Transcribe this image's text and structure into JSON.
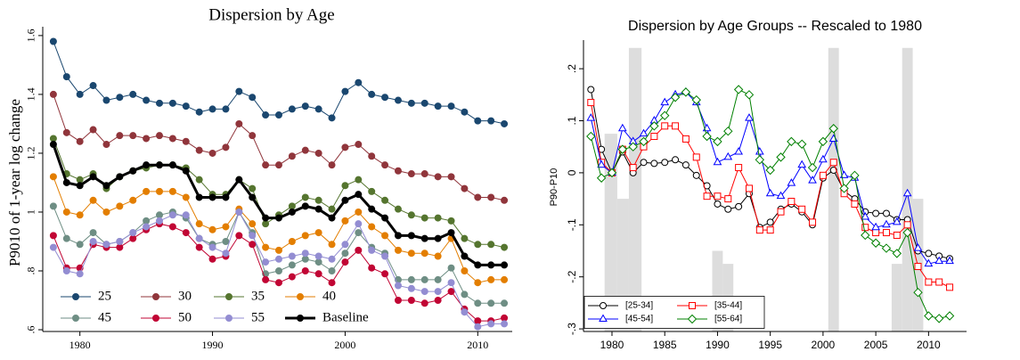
{
  "chart_data": [
    {
      "type": "line",
      "title": "Dispersion by Age",
      "y_label": "P9010 of 1-year log change",
      "x": [
        1978,
        1979,
        1980,
        1981,
        1982,
        1983,
        1984,
        1985,
        1986,
        1987,
        1988,
        1989,
        1990,
        1991,
        1992,
        1993,
        1994,
        1995,
        1996,
        1997,
        1998,
        1999,
        2000,
        2001,
        2002,
        2003,
        2004,
        2005,
        2006,
        2007,
        2008,
        2009,
        2010,
        2011,
        2012
      ],
      "xlim": [
        1977.2,
        2012.6
      ],
      "ylim": [
        0.594,
        1.63
      ],
      "xticks": [
        1980,
        1990,
        2000,
        2010
      ],
      "yticks": [
        {
          "value": 0.6,
          "label": ".6"
        },
        {
          "value": 0.8,
          "label": ".8"
        },
        1,
        1.2,
        1.4,
        1.6
      ],
      "legend": "lower left",
      "series": [
        {
          "name": "25",
          "color": "#1a476f",
          "marker": "filled-circle",
          "values": [
            1.58,
            1.46,
            1.4,
            1.43,
            1.38,
            1.39,
            1.4,
            1.38,
            1.37,
            1.37,
            1.36,
            1.34,
            1.35,
            1.35,
            1.41,
            1.39,
            1.33,
            1.33,
            1.35,
            1.36,
            1.35,
            1.32,
            1.41,
            1.44,
            1.4,
            1.39,
            1.38,
            1.37,
            1.37,
            1.36,
            1.36,
            1.34,
            1.31,
            1.31,
            1.3
          ]
        },
        {
          "name": "30",
          "color": "#90353b",
          "marker": "filled-circle",
          "values": [
            1.4,
            1.27,
            1.24,
            1.28,
            1.23,
            1.26,
            1.26,
            1.25,
            1.26,
            1.25,
            1.24,
            1.21,
            1.2,
            1.22,
            1.3,
            1.26,
            1.16,
            1.16,
            1.19,
            1.21,
            1.2,
            1.16,
            1.22,
            1.23,
            1.19,
            1.16,
            1.14,
            1.13,
            1.13,
            1.12,
            1.12,
            1.08,
            1.05,
            1.05,
            1.04
          ]
        },
        {
          "name": "35",
          "color": "#55752f",
          "marker": "filled-circle",
          "values": [
            1.25,
            1.13,
            1.11,
            1.13,
            1.08,
            1.12,
            1.14,
            1.15,
            1.16,
            1.16,
            1.15,
            1.11,
            1.06,
            1.06,
            1.11,
            1.08,
            0.96,
            0.99,
            1.02,
            1.05,
            1.04,
            1.01,
            1.09,
            1.11,
            1.07,
            1.04,
            1.01,
            0.99,
            0.98,
            0.98,
            0.97,
            0.91,
            0.89,
            0.89,
            0.88
          ]
        },
        {
          "name": "40",
          "color": "#e37e00",
          "marker": "filled-circle",
          "values": [
            1.12,
            1.0,
            0.99,
            1.04,
            1.0,
            1.02,
            1.04,
            1.07,
            1.07,
            1.07,
            1.05,
            0.96,
            0.94,
            0.95,
            1.01,
            0.96,
            0.88,
            0.87,
            0.9,
            0.92,
            0.93,
            0.89,
            0.97,
            1.0,
            0.95,
            0.92,
            0.87,
            0.86,
            0.86,
            0.85,
            0.91,
            0.8,
            0.76,
            0.77,
            0.77
          ]
        },
        {
          "name": "45",
          "color": "#6e8e84",
          "marker": "filled-circle",
          "values": [
            1.02,
            0.91,
            0.89,
            0.93,
            0.89,
            0.9,
            0.93,
            0.97,
            0.99,
            1.0,
            0.98,
            0.91,
            0.89,
            0.9,
            1.0,
            0.93,
            0.79,
            0.8,
            0.82,
            0.84,
            0.83,
            0.8,
            0.86,
            0.93,
            0.88,
            0.86,
            0.77,
            0.77,
            0.77,
            0.77,
            0.81,
            0.72,
            0.69,
            0.69,
            0.69
          ]
        },
        {
          "name": "50",
          "color": "#c10534",
          "marker": "filled-circle",
          "values": [
            0.92,
            0.81,
            0.81,
            0.89,
            0.88,
            0.88,
            0.91,
            0.94,
            0.96,
            0.95,
            0.93,
            0.88,
            0.84,
            0.85,
            0.92,
            0.89,
            0.77,
            0.76,
            0.78,
            0.8,
            0.79,
            0.76,
            0.83,
            0.87,
            0.81,
            0.79,
            0.7,
            0.7,
            0.69,
            0.7,
            0.73,
            0.67,
            0.63,
            0.63,
            0.64
          ]
        },
        {
          "name": "55",
          "color": "#938dd2",
          "marker": "filled-circle",
          "values": [
            0.88,
            0.8,
            0.79,
            0.9,
            0.89,
            0.9,
            0.93,
            0.95,
            0.97,
            0.99,
            0.99,
            0.91,
            0.88,
            0.86,
            1.0,
            0.92,
            0.83,
            0.84,
            0.85,
            0.86,
            0.85,
            0.84,
            0.89,
            0.96,
            0.87,
            0.85,
            0.75,
            0.74,
            0.73,
            0.73,
            0.76,
            0.66,
            0.61,
            0.62,
            0.62
          ]
        },
        {
          "name": "Baseline",
          "color": "#000000",
          "marker": "filled-circle",
          "line_width": 3,
          "values": [
            1.23,
            1.1,
            1.09,
            1.12,
            1.09,
            1.12,
            1.14,
            1.16,
            1.16,
            1.16,
            1.14,
            1.05,
            1.05,
            1.05,
            1.11,
            1.05,
            0.98,
            0.98,
            1.0,
            1.02,
            1.01,
            0.98,
            1.04,
            1.06,
            1.01,
            0.98,
            0.92,
            0.92,
            0.91,
            0.91,
            0.93,
            0.85,
            0.82,
            0.82,
            0.82
          ]
        }
      ]
    },
    {
      "type": "line",
      "title": "Dispersion by Age Groups -- Rescaled to 1980",
      "y_label": "P90-P10",
      "x": [
        1978,
        1979,
        1980,
        1981,
        1982,
        1983,
        1984,
        1985,
        1986,
        1987,
        1988,
        1989,
        1990,
        1991,
        1992,
        1993,
        1994,
        1995,
        1996,
        1997,
        1998,
        1999,
        2000,
        2001,
        2002,
        2003,
        2004,
        2005,
        2006,
        2007,
        2008,
        2009,
        2010,
        2011,
        2012
      ],
      "xlim": [
        1977.3,
        2013.6
      ],
      "ylim": [
        -0.305,
        0.255
      ],
      "xticks": [
        1980,
        1985,
        1990,
        1995,
        2000,
        2005,
        2010
      ],
      "yticks": [
        {
          "value": -0.3,
          "label": "-.3"
        },
        {
          "value": -0.2,
          "label": "-.2"
        },
        {
          "value": -0.1,
          "label": "-.1"
        },
        0,
        {
          "value": 0.1,
          "label": ".1"
        },
        {
          "value": 0.2,
          "label": ".2"
        }
      ],
      "legend": "lower left",
      "shading": {
        "color": "#dddddd",
        "x0": [
          1979.3,
          1980.5,
          1981.6,
          1989.5,
          1990.5,
          2000.5,
          2006.5,
          2007.5,
          2008.5
        ],
        "x1": [
          1980.5,
          1981.6,
          1982.8,
          1990.5,
          1991.5,
          2001.5,
          2007.5,
          2008.5,
          2009.5
        ],
        "values": [
          0.075,
          -0.05,
          0.24,
          -0.15,
          -0.175,
          0.24,
          -0.175,
          0.24,
          -0.05
        ]
      },
      "series": [
        {
          "name": "[25-34]",
          "color": "#000000",
          "marker": "circle",
          "values": [
            0.16,
            0.045,
            0.0,
            0.04,
            0.0,
            0.02,
            0.018,
            0.02,
            0.025,
            0.015,
            -0.005,
            -0.025,
            -0.06,
            -0.07,
            -0.065,
            -0.04,
            -0.105,
            -0.095,
            -0.07,
            -0.06,
            -0.075,
            -0.1,
            -0.01,
            0.005,
            -0.035,
            -0.05,
            -0.075,
            -0.078,
            -0.078,
            -0.09,
            -0.09,
            -0.15,
            -0.155,
            -0.16,
            -0.165
          ]
        },
        {
          "name": "[35-44]",
          "color": "#ff0000",
          "marker": "square",
          "values": [
            0.135,
            0.02,
            0.0,
            0.045,
            0.01,
            0.05,
            0.07,
            0.09,
            0.09,
            0.065,
            0.03,
            -0.045,
            -0.045,
            -0.05,
            0.01,
            -0.03,
            -0.11,
            -0.11,
            -0.075,
            -0.055,
            -0.07,
            -0.095,
            -0.005,
            0.02,
            -0.04,
            -0.06,
            -0.105,
            -0.115,
            -0.115,
            -0.12,
            -0.1,
            -0.18,
            -0.21,
            -0.21,
            -0.22
          ]
        },
        {
          "name": "[45-54]",
          "color": "#0000ff",
          "marker": "triangle",
          "values": [
            0.105,
            0.015,
            0.0,
            0.085,
            0.06,
            0.075,
            0.1,
            0.135,
            0.15,
            0.155,
            0.135,
            0.085,
            0.02,
            0.03,
            0.04,
            0.105,
            0.04,
            -0.04,
            -0.045,
            -0.02,
            0.015,
            -0.015,
            0.025,
            0.065,
            -0.005,
            -0.01,
            -0.085,
            -0.105,
            -0.1,
            -0.095,
            -0.04,
            -0.145,
            -0.175,
            -0.17,
            -0.17
          ]
        },
        {
          "name": "[55-64]",
          "color": "#008000",
          "marker": "diamond",
          "values": [
            0.07,
            -0.01,
            0.0,
            0.045,
            0.05,
            0.06,
            0.09,
            0.11,
            0.145,
            0.155,
            0.14,
            0.07,
            0.06,
            0.08,
            0.16,
            0.15,
            0.025,
            0.005,
            0.03,
            0.06,
            0.055,
            0.01,
            0.06,
            0.085,
            -0.03,
            -0.005,
            -0.12,
            -0.135,
            -0.145,
            -0.155,
            -0.115,
            -0.23,
            -0.275,
            -0.28,
            -0.275
          ]
        }
      ]
    }
  ]
}
